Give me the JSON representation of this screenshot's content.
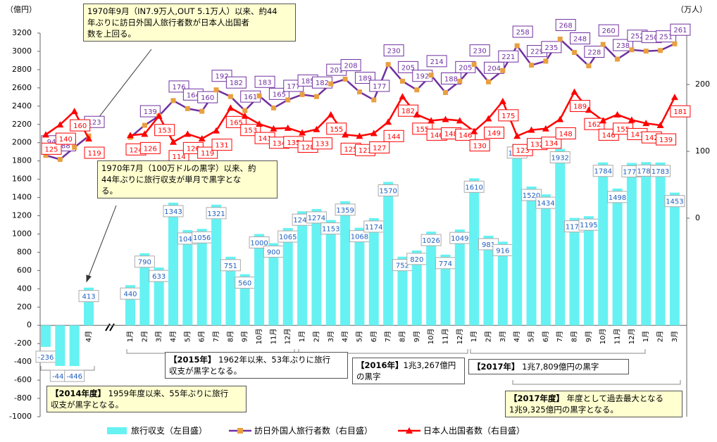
{
  "chart_data": {
    "type": "bar",
    "y_label": "（億円）",
    "y2_label": "（万人）",
    "categories": [
      "1月",
      "2月",
      "3月",
      "4月",
      "1月",
      "2月",
      "3月",
      "4月",
      "5月",
      "6月",
      "7月",
      "8月",
      "9月",
      "10月",
      "11月",
      "12月",
      "1月",
      "2月",
      "3月",
      "4月",
      "5月",
      "6月",
      "7月",
      "8月",
      "9月",
      "10月",
      "11月",
      "12月",
      "1月",
      "2月",
      "3月",
      "4月",
      "5月",
      "6月",
      "7月",
      "8月",
      "9月",
      "10月",
      "11月",
      "12月",
      "1月",
      "2月",
      "3月"
    ],
    "series": [
      {
        "name": "旅行収支（左目盛）",
        "type": "bar",
        "color": "#66f2f2",
        "values": [
          -236,
          -445,
          -446,
          413,
          440,
          790,
          633,
          1343,
          1043,
          1056,
          1321,
          751,
          560,
          1000,
          900,
          1065,
          1249,
          1274,
          1153,
          1359,
          1068,
          1174,
          1570,
          752,
          820,
          1026,
          774,
          1049,
          1610,
          981,
          916,
          1984,
          1520,
          1434,
          1932,
          1176,
          1195,
          1784,
          1498,
          1778,
          1787,
          1783,
          1453
        ]
      },
      {
        "name": "訪日外国人旅行者数（右目盛）",
        "type": "line",
        "axis": "y2",
        "color": "#7030a0",
        "marker_color": "#e8a040",
        "values": [
          94,
          88,
          106,
          123,
          121,
          139,
          153,
          176,
          164,
          160,
          192,
          182,
          161,
          183,
          165,
          177,
          185,
          182,
          201,
          208,
          189,
          177,
          230,
          205,
          192,
          214,
          188,
          205,
          230,
          204,
          221,
          258,
          229,
          235,
          268,
          248,
          228,
          260,
          238,
          252,
          250,
          251,
          261
        ],
        "value_labels": [
          "94",
          "88",
          null,
          "123",
          null,
          "139",
          null,
          "176",
          "164",
          "160",
          "192",
          "182",
          "161",
          "183",
          "165",
          "177",
          "185",
          "182",
          "201",
          "208",
          "189",
          "177",
          "230",
          "205",
          "192",
          "214",
          "188",
          "205",
          "230",
          "204",
          "221",
          "258",
          "229",
          "235",
          "268",
          "248",
          "228",
          "260",
          "238",
          "252",
          "250",
          "251",
          "261"
        ]
      },
      {
        "name": "日本人出国者数（右目盛）",
        "type": "line",
        "axis": "y2",
        "color": "#ff0000",
        "values": [
          125,
          140,
          160,
          119,
          124,
          126,
          153,
          114,
          126,
          119,
          131,
          165,
          153,
          141,
          134,
          135,
          128,
          133,
          155,
          125,
          123,
          127,
          144,
          182,
          155,
          146,
          148,
          146,
          130,
          149,
          175,
          123,
          132,
          134,
          148,
          189,
          162,
          146,
          155,
          147,
          142,
          139,
          181
        ]
      }
    ],
    "ylim": [
      -1000,
      3200
    ],
    "yticks": [
      -1000,
      -800,
      -600,
      -400,
      -200,
      0,
      200,
      400,
      600,
      800,
      1000,
      1200,
      1400,
      1600,
      1800,
      2000,
      2200,
      2400,
      2600,
      2800,
      3000,
      3200
    ],
    "y2lim": [
      -297,
      277
    ],
    "y2ticks": [
      0,
      100,
      200
    ],
    "annotations": [
      {
        "lines": [
          "1970年9月（IN7.9万人,OUT 5.1万人）以来、約44",
          "年ぶりに訪日外国人旅行者数が日本人出国者",
          "数を上回る。"
        ]
      },
      {
        "lines": [
          "1970年7月（100万ドルの黒字）以来、約",
          "44年ぶりに旅行収支が単月で黒字とな",
          "る。"
        ]
      },
      {
        "tag": "【2015年】",
        "lines": [
          " 1962年以来、53年ぶりに旅行",
          "収支が黒字となる。"
        ]
      },
      {
        "tag": "【2014年度】",
        "lines": [
          " 1959年度以来、55年ぶりに旅行",
          "収支が黒字となる。"
        ]
      },
      {
        "tag": "【2016年】",
        "lines": [
          "1兆3,267億円の黒字"
        ]
      },
      {
        "tag": "【2017年】",
        "lines": [
          " 1兆7,809億円の黒字"
        ]
      },
      {
        "tag": "【2017年度】",
        "lines": [
          " 年度として過去最大となる",
          "1兆9,325億円の黒字となる。"
        ]
      }
    ]
  }
}
